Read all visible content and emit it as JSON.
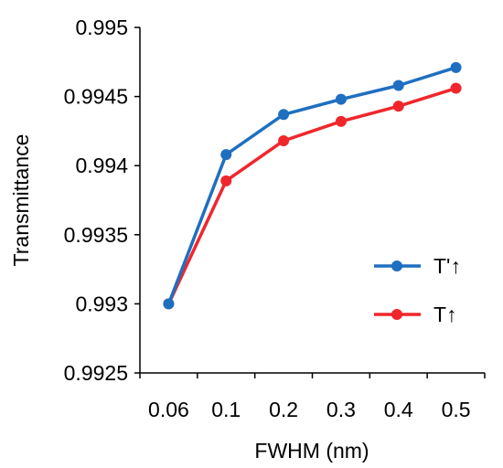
{
  "chart_data": {
    "type": "line",
    "xlabel": "FWHM (nm)",
    "ylabel": "Transmittance",
    "categories": [
      "0.06",
      "0.1",
      "0.2",
      "0.3",
      "0.4",
      "0.5"
    ],
    "ylim": [
      0.9925,
      0.995
    ],
    "yticks": [
      "0.9925",
      "0.993",
      "0.9935",
      "0.994",
      "0.9945",
      "0.995"
    ],
    "ytick_values": [
      0.9925,
      0.993,
      0.9935,
      0.994,
      0.9945,
      0.995
    ],
    "grid": false,
    "legend_position": "right",
    "series": [
      {
        "name": "T'↑",
        "color": "#1f6fc0",
        "values": [
          0.993,
          0.99408,
          0.99437,
          0.99448,
          0.99458,
          0.99471
        ]
      },
      {
        "name": "T↑",
        "color": "#f0262c",
        "values": [
          0.993,
          0.99389,
          0.99418,
          0.99432,
          0.99443,
          0.99456
        ]
      }
    ]
  }
}
